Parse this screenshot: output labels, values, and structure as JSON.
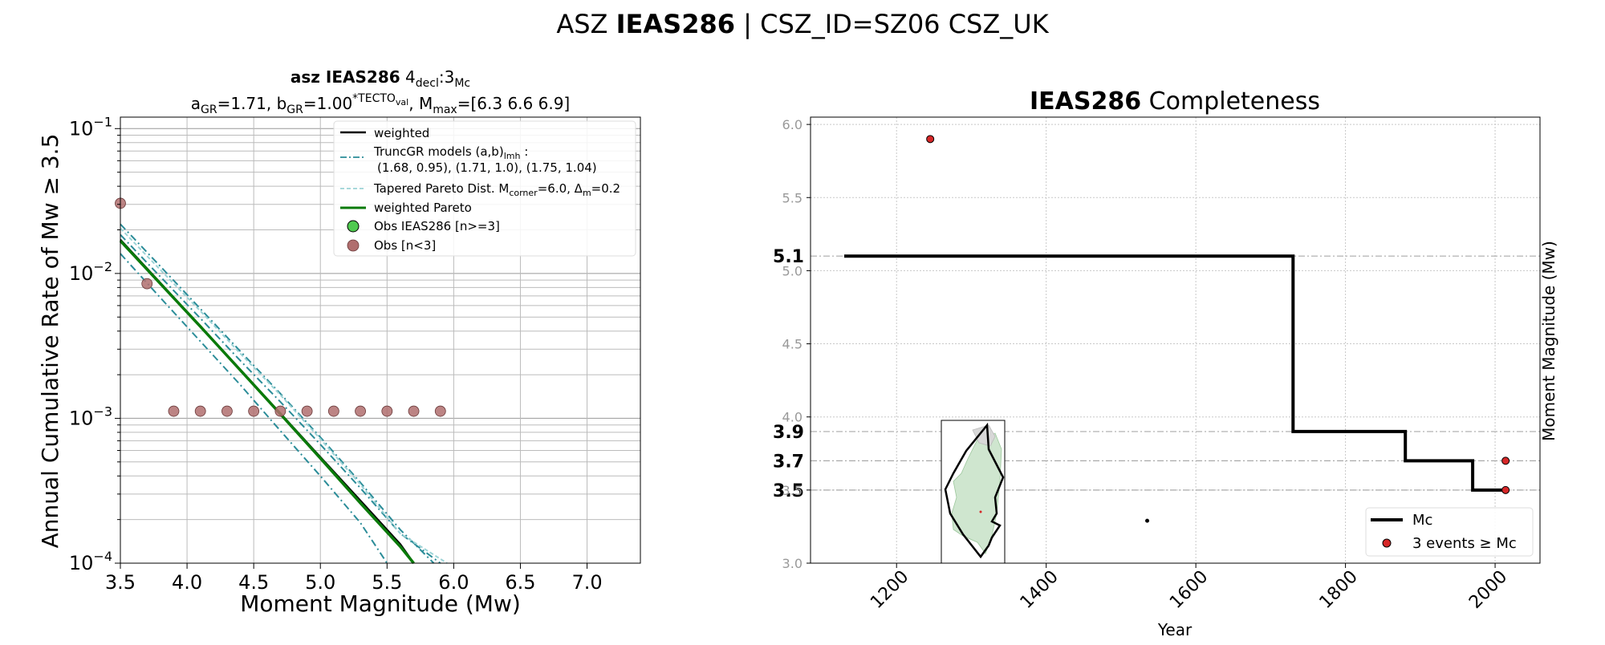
{
  "suptitle": {
    "prefix": "ASZ ",
    "bold": "IEAS286",
    "suffix": " | CSZ_ID=SZ06 CSZ_UK"
  },
  "chart_data": [
    {
      "type": "line",
      "title": {
        "bold": "asz IEAS286",
        "rest": "  4",
        "sub1": "decl",
        "mid": ":3",
        "sub2": "Mc"
      },
      "subtitle": {
        "a": "a",
        "a_sub": "GR",
        "a_val": "=1.71,  b",
        "b_sub": "GR",
        "b_val": "=1.00",
        "b_sup": "*TECTO",
        "b_sup_sub": "val",
        "m": ", M",
        "m_sub": "max",
        "m_val": "=[6.3 6.6 6.9]"
      },
      "xlabel": "Moment Magnitude (Mw)",
      "ylabel": "Annual Cumulative Rate of Mw  ≥  3.5",
      "xlim": [
        3.5,
        7.4
      ],
      "ylim": [
        0.0001,
        0.12
      ],
      "yscale": "log",
      "grid": true,
      "x_ticks": [
        3.5,
        4.0,
        4.5,
        5.0,
        5.5,
        6.0,
        6.5,
        7.0
      ],
      "x_tick_labels": [
        "3.5",
        "4.0",
        "4.5",
        "5.0",
        "5.5",
        "6.0",
        "6.5",
        "7.0"
      ],
      "y_ticks": [
        0.0001,
        0.001,
        0.01,
        0.1
      ],
      "y_tick_labels": [
        {
          "base": "10",
          "exp": "−4"
        },
        {
          "base": "10",
          "exp": "−3"
        },
        {
          "base": "10",
          "exp": "−2"
        },
        {
          "base": "10",
          "exp": "−1"
        }
      ],
      "legend": {
        "placement": "upper right",
        "entries": [
          {
            "label": "weighted"
          },
          {
            "label": "TruncGR models (a,b)",
            "sub": "lmh",
            "label_end": " :",
            "line2": "(1.68, 0.95), (1.71, 1.0), (1.75, 1.04)"
          },
          {
            "label": "Tapered Pareto Dist. M",
            "sub": "corner",
            "label_end": "=6.0, Δ",
            "sub2": "m",
            "label_end2": "=0.2"
          },
          {
            "label": "weighted Pareto"
          },
          {
            "label": "Obs IEAS286 [n>=3]"
          },
          {
            "label": "Obs [n<3]"
          }
        ]
      },
      "colors": {
        "weighted": "#000000",
        "truncgr": "#2a8c98",
        "pareto": "#9cd3d6",
        "weighted_pareto": "#0a7a0a",
        "obs_main": "#4fc94f",
        "obs_small": "#b06e6e"
      },
      "series": [
        {
          "name": "weighted",
          "x": [
            3.5,
            3.8,
            4.1,
            4.4,
            4.7,
            5.0,
            5.3,
            5.6,
            5.7
          ],
          "y": [
            0.0171,
            0.0086,
            0.0043,
            0.00216,
            0.00108,
            0.00054,
            0.00027,
            0.000135,
            0.0001
          ]
        },
        {
          "name": "TruncGR models (a,b)",
          "x": [
            3.5,
            3.8,
            4.1,
            4.4,
            4.7,
            5.0,
            5.3,
            5.6,
            5.85
          ],
          "y": [
            0.0219,
            0.0112,
            0.0057,
            0.0029,
            0.00148,
            0.00074,
            0.00036,
            0.00017,
            0.0001
          ]
        },
        {
          "name": "",
          "x": [
            3.5,
            3.8,
            4.1,
            4.4,
            4.7,
            5.0,
            5.3,
            5.6,
            5.9
          ],
          "y": [
            0.0185,
            0.0095,
            0.0049,
            0.0025,
            0.0013,
            0.00066,
            0.00033,
            0.00016,
            0.0001
          ]
        },
        {
          "name": "",
          "x": [
            3.5,
            3.8,
            4.1,
            4.4,
            4.7,
            5.0,
            5.3,
            5.5
          ],
          "y": [
            0.0137,
            0.0068,
            0.0034,
            0.0017,
            0.00082,
            0.0004,
            0.00019,
            0.0001
          ]
        },
        {
          "name": "Tapered Pareto Dist.",
          "x": [
            3.5,
            3.8,
            4.1,
            4.4,
            4.7,
            5.0,
            5.3,
            5.6,
            5.95
          ],
          "y": [
            0.0205,
            0.0106,
            0.0055,
            0.0028,
            0.00145,
            0.00072,
            0.00035,
            0.00016,
            0.0001
          ]
        },
        {
          "name": "weighted Pareto",
          "x": [
            3.5,
            3.8,
            4.1,
            4.4,
            4.7,
            5.0,
            5.3,
            5.6,
            5.7
          ],
          "y": [
            0.0168,
            0.0085,
            0.0043,
            0.00215,
            0.00107,
            0.00053,
            0.00026,
            0.00013,
            0.0001
          ]
        }
      ],
      "points_small": {
        "x": [
          3.5,
          3.7,
          3.9,
          4.1,
          4.3,
          4.5,
          4.7,
          4.9,
          5.1,
          5.3,
          5.5,
          5.7,
          5.9
        ],
        "y": [
          0.0305,
          0.0085,
          0.00112,
          0.00112,
          0.00112,
          0.00112,
          0.00112,
          0.00112,
          0.00112,
          0.00112,
          0.00112,
          0.00112,
          0.00112
        ]
      }
    },
    {
      "type": "line",
      "title": {
        "bold": "IEAS286",
        "rest": " Completeness"
      },
      "xlabel": "Year",
      "ylabel": "Moment Magnitude (Mw)",
      "xlim": [
        1085,
        2060
      ],
      "ylim": [
        3.0,
        6.05
      ],
      "grid": true,
      "x_ticks": [
        1200,
        1400,
        1600,
        1800,
        2000
      ],
      "x_tick_labels": [
        "1200",
        "1400",
        "1600",
        "1800",
        "2000"
      ],
      "y_ticks": [
        3.0,
        3.5,
        4.0,
        4.5,
        5.0,
        5.5,
        6.0
      ],
      "y_tick_labels": [
        "3.0",
        "3.5",
        "4.0",
        "4.5",
        "5.0",
        "5.5",
        "6.0"
      ],
      "mc_levels": [
        5.1,
        3.9,
        3.7,
        3.5
      ],
      "mc_labels": [
        "5.1",
        "3.9",
        "3.7",
        "3.5"
      ],
      "legend": {
        "placement": "lower right",
        "entries": [
          {
            "label": "Mc"
          },
          {
            "label": "3 events  ≥  Mc"
          }
        ]
      },
      "colors": {
        "mc": "#000000",
        "events": "#d62728",
        "ref": "#aaaaaa"
      },
      "series": [
        {
          "name": "Mc",
          "x": [
            1130,
            1730,
            1730,
            1880,
            1880,
            1970,
            1970,
            2015
          ],
          "y": [
            5.1,
            5.1,
            3.9,
            3.9,
            3.7,
            3.7,
            3.5,
            3.5
          ]
        }
      ],
      "events": {
        "x": [
          1245,
          2014,
          2014
        ],
        "y": [
          5.9,
          3.7,
          3.5
        ]
      },
      "small_point": {
        "x": [
          1535
        ],
        "y": [
          3.29
        ]
      }
    }
  ]
}
